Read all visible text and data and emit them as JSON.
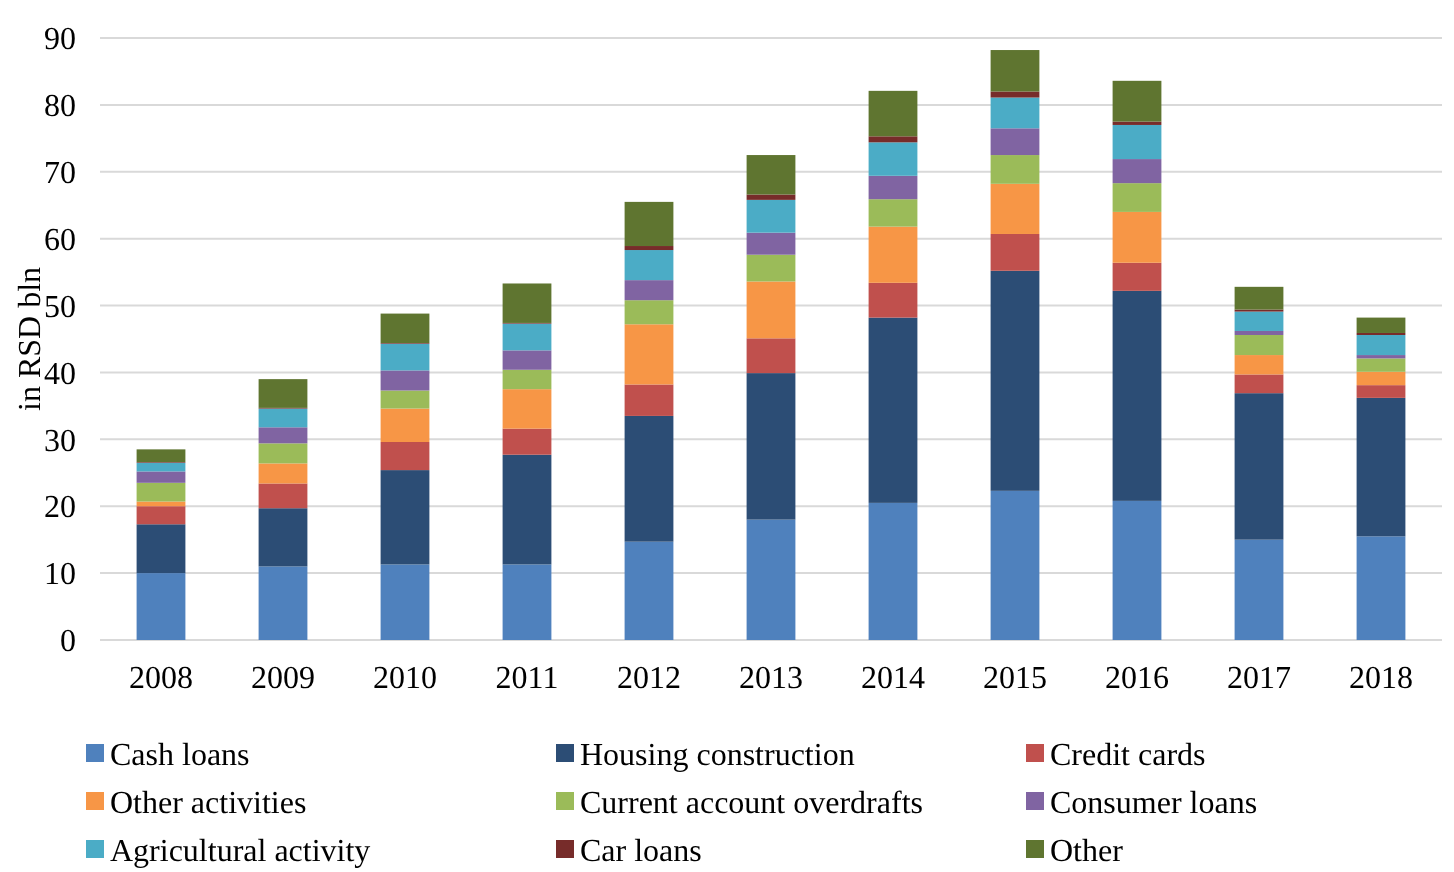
{
  "chart_data": {
    "type": "bar",
    "stacked": true,
    "ylabel": "in RSD bln",
    "categories": [
      "2008",
      "2009",
      "2010",
      "2011",
      "2012",
      "2013",
      "2014",
      "2015",
      "2016",
      "2017",
      "2018"
    ],
    "series": [
      {
        "name": "Cash loans",
        "color": "#4f81bd",
        "values": [
          10,
          11,
          11.3,
          11.3,
          14.7,
          18,
          20.5,
          22.3,
          20.8,
          15,
          15.5
        ]
      },
      {
        "name": "Housing construction",
        "color": "#2c4d75",
        "values": [
          7.3,
          8.7,
          14.1,
          16.4,
          18.8,
          21.9,
          27.7,
          32.9,
          31.4,
          21.9,
          20.7
        ]
      },
      {
        "name": "Credit cards",
        "color": "#c0504d",
        "values": [
          2.7,
          3.7,
          4.2,
          3.9,
          4.7,
          5.2,
          5.2,
          5.5,
          4.2,
          2.8,
          1.9
        ]
      },
      {
        "name": "Other activities",
        "color": "#f79646",
        "values": [
          0.7,
          3,
          5,
          5.9,
          9,
          8.5,
          8.4,
          7.5,
          7.6,
          2.9,
          2
        ]
      },
      {
        "name": "Current account overdrafts",
        "color": "#9bbb59",
        "values": [
          2.8,
          3,
          2.7,
          2.9,
          3.6,
          4,
          4.1,
          4.3,
          4.3,
          3,
          2
        ]
      },
      {
        "name": "Consumer loans",
        "color": "#8064a2",
        "values": [
          1.7,
          2.4,
          3,
          2.9,
          3,
          3.3,
          3.5,
          4,
          3.6,
          0.6,
          0.5
        ]
      },
      {
        "name": "Agricultural activity",
        "color": "#4bacc6",
        "values": [
          1.3,
          2.8,
          4,
          4,
          4.5,
          4.9,
          5,
          4.6,
          5.1,
          2.9,
          3
        ]
      },
      {
        "name": "Car loans",
        "color": "#772c2a",
        "values": [
          0.1,
          0.1,
          0.1,
          0.1,
          0.6,
          0.8,
          0.9,
          0.9,
          0.5,
          0.3,
          0.3
        ]
      },
      {
        "name": "Other",
        "color": "#5f7530",
        "values": [
          1.9,
          4.3,
          4.4,
          5.9,
          6.6,
          5.9,
          6.8,
          6.2,
          6.1,
          3.4,
          2.3
        ]
      }
    ],
    "ylim": [
      0,
      90
    ],
    "yticks": [
      0,
      10,
      20,
      30,
      40,
      50,
      60,
      70,
      80,
      90
    ],
    "grid": "y",
    "legend": "bottom"
  }
}
